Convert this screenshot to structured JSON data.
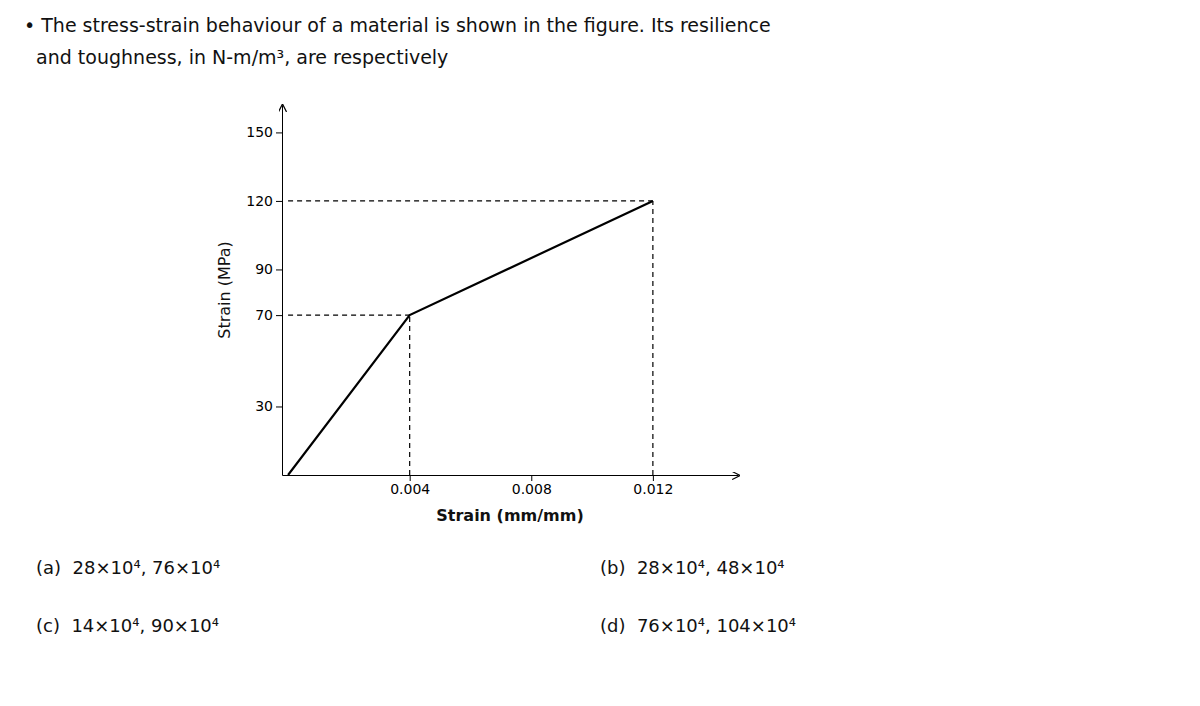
{
  "chart_data": {
    "type": "line",
    "title": [
      "• The stress-strain behaviour of a material is shown in the figure. Its resilience",
      "  and toughness, in N-m/m³, are respectively"
    ],
    "x_label": "Strain (mm/mm)",
    "y_label": "Strain (MPa)",
    "xlim": [
      -0.0002,
      0.0148
    ],
    "ylim": [
      0,
      162
    ],
    "xticks": [
      0.004,
      0.008,
      0.012
    ],
    "yticks": [
      30,
      70,
      90,
      120,
      150
    ],
    "grid": false,
    "series": [
      {
        "x": [
          0,
          0.004,
          0.012
        ],
        "values": [
          0,
          70,
          120
        ],
        "color": "#000000",
        "line_style": "solid"
      },
      {
        "x": [
          0,
          0.004
        ],
        "values": [
          70,
          70
        ],
        "color": "#000000",
        "line_style": "dashed"
      },
      {
        "x": [
          0,
          0.012
        ],
        "values": [
          120,
          120
        ],
        "color": "#000000",
        "line_style": "dashed"
      },
      {
        "x": [
          0.004,
          0.004
        ],
        "values": [
          0,
          70
        ],
        "color": "#000000",
        "line_style": "dashed"
      },
      {
        "x": [
          0.012,
          0.012
        ],
        "values": [
          0,
          120
        ],
        "color": "#000000",
        "line_style": "dashed"
      }
    ],
    "annotations": [
      "(a)  28×10⁴, 76×10⁴",
      "(c)  14×10⁴, 90×10⁴",
      "(b)  28×10⁴, 48×10⁴",
      "(d)  76×10⁴, 104×10⁴"
    ]
  }
}
